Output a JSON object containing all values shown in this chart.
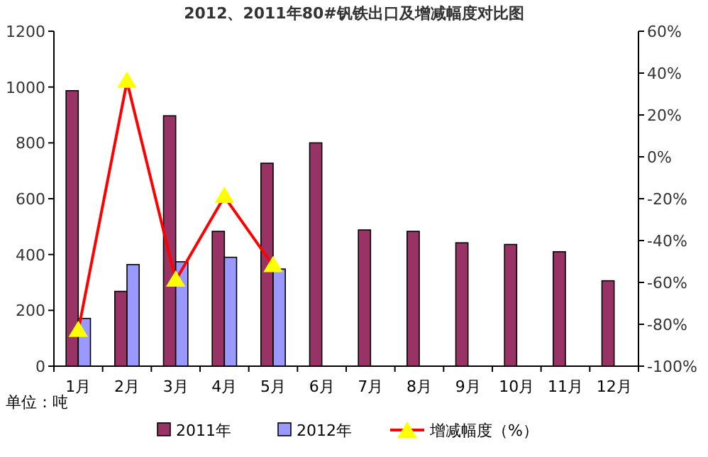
{
  "chart_data": {
    "type": "bar",
    "title": "2012、2011年80#钒铁出口及增减幅度对比图",
    "categories": [
      "1月",
      "2月",
      "3月",
      "4月",
      "5月",
      "6月",
      "7月",
      "8月",
      "9月",
      "10月",
      "11月",
      "12月"
    ],
    "series": [
      {
        "name": "2011年",
        "color": "#993366",
        "values": [
          987,
          268,
          897,
          483,
          727,
          800,
          488,
          483,
          442,
          436,
          410,
          306
        ]
      },
      {
        "name": "2012年",
        "color": "#9999ff",
        "values": [
          171,
          364,
          374,
          390,
          348,
          null,
          null,
          null,
          null,
          null,
          null,
          null
        ]
      },
      {
        "name": "增减幅度（%）",
        "type": "line",
        "axis": "y2",
        "color": "#ff0000",
        "marker": "triangle",
        "values": [
          -83,
          36,
          -59,
          -19,
          -52,
          null,
          null,
          null,
          null,
          null,
          null,
          null
        ]
      }
    ],
    "ylim": [
      0,
      1200
    ],
    "yticks": [
      0,
      200,
      400,
      600,
      800,
      1000,
      1200
    ],
    "y2lim": [
      -100,
      60
    ],
    "y2ticks": [
      {
        "value": -100,
        "label": "-100%"
      },
      {
        "value": -80,
        "label": "-80%"
      },
      {
        "value": -60,
        "label": "-60%"
      },
      {
        "value": -40,
        "label": "-40%"
      },
      {
        "value": -20,
        "label": "-20%"
      },
      {
        "value": 0,
        "label": "0%"
      },
      {
        "value": 20,
        "label": "20%"
      },
      {
        "value": 40,
        "label": "40%"
      },
      {
        "value": 60,
        "label": "60%"
      }
    ],
    "annotations": [
      "单位：吨"
    ],
    "legend": "bottom"
  }
}
